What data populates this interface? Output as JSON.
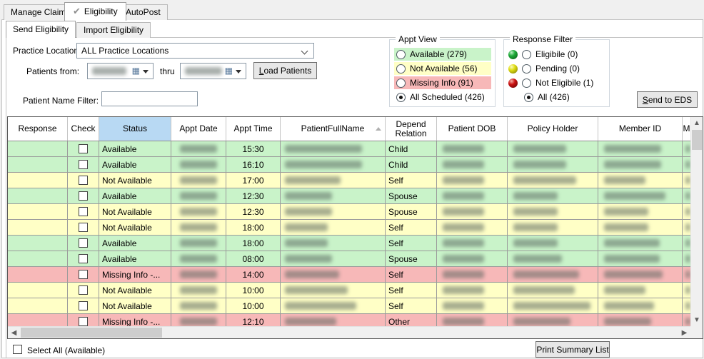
{
  "tabs": {
    "manage_claims": "Manage Claims",
    "eligibility": "Eligibility",
    "autopost": "AutoPost"
  },
  "subtabs": {
    "send": "Send Eligibility",
    "import": "Import Eligibility"
  },
  "form": {
    "practice_location_label": "Practice Location:",
    "practice_location_value": "ALL Practice Locations",
    "patients_from_label": "Patients from:",
    "thru_label": "thru",
    "load_patients_accel": "L",
    "load_patients_rest": "oad Patients",
    "patient_name_filter_label": "Patient Name Filter:",
    "patient_name_filter_value": ""
  },
  "appt_view": {
    "title": "Appt View",
    "options": [
      {
        "label": "Available (279)",
        "tone": "green",
        "selected": false
      },
      {
        "label": "Not Available (56)",
        "tone": "yellow",
        "selected": false
      },
      {
        "label": "Missing Info (91)",
        "tone": "red",
        "selected": false
      },
      {
        "label": "All Scheduled (426)",
        "tone": "none",
        "selected": true
      }
    ]
  },
  "response_filter": {
    "title": "Response Filter",
    "options": [
      {
        "label": "Eligibile (0)",
        "ball": "green",
        "selected": false
      },
      {
        "label": "Pending (0)",
        "ball": "yellow",
        "selected": false
      },
      {
        "label": "Not Eligibile (1)",
        "ball": "red",
        "selected": false
      },
      {
        "label": "All (426)",
        "ball": "none",
        "selected": true
      }
    ]
  },
  "buttons": {
    "send_to_eds_accel": "S",
    "send_to_eds_rest": "end to EDS",
    "print_summary": "Print Summary List"
  },
  "footer": {
    "select_all_label": "Select All (Available)"
  },
  "table": {
    "columns": [
      "Response",
      "Check",
      "Status",
      "Appt Date",
      "Appt Time",
      "PatientFullName",
      "Depend Relation",
      "Patient DOB",
      "Policy Holder",
      "Member ID",
      "M"
    ],
    "sorted_column": "PatientFullName",
    "highlighted_column": "Status",
    "rows": [
      {
        "status": "Available",
        "appt_time": "15:30",
        "depend_relation": "Child",
        "tone": "green"
      },
      {
        "status": "Available",
        "appt_time": "16:10",
        "depend_relation": "Child",
        "tone": "green"
      },
      {
        "status": "Not Available",
        "appt_time": "17:00",
        "depend_relation": "Self",
        "tone": "yellow"
      },
      {
        "status": "Available",
        "appt_time": "12:30",
        "depend_relation": "Spouse",
        "tone": "green"
      },
      {
        "status": "Not Available",
        "appt_time": "12:30",
        "depend_relation": "Spouse",
        "tone": "yellow"
      },
      {
        "status": "Not Available",
        "appt_time": "18:00",
        "depend_relation": "Self",
        "tone": "yellow"
      },
      {
        "status": "Available",
        "appt_time": "18:00",
        "depend_relation": "Self",
        "tone": "green"
      },
      {
        "status": "Available",
        "appt_time": "08:00",
        "depend_relation": "Spouse",
        "tone": "green"
      },
      {
        "status": "Missing Info -...",
        "appt_time": "14:00",
        "depend_relation": "Self",
        "tone": "red"
      },
      {
        "status": "Not Available",
        "appt_time": "10:00",
        "depend_relation": "Self",
        "tone": "yellow"
      },
      {
        "status": "Not Available",
        "appt_time": "10:00",
        "depend_relation": "Self",
        "tone": "yellow"
      },
      {
        "status": "Missing Info -...",
        "appt_time": "12:10",
        "depend_relation": "Other",
        "tone": "red"
      }
    ]
  },
  "colors": {
    "row_green": "#c9f3c9",
    "row_yellow": "#ffffc6",
    "row_red": "#f7b8b8",
    "status_header_blue": "#b8d9f3",
    "ball_green": "#1daa38",
    "ball_yellow": "#dfdd12",
    "ball_red": "#cc1111"
  }
}
